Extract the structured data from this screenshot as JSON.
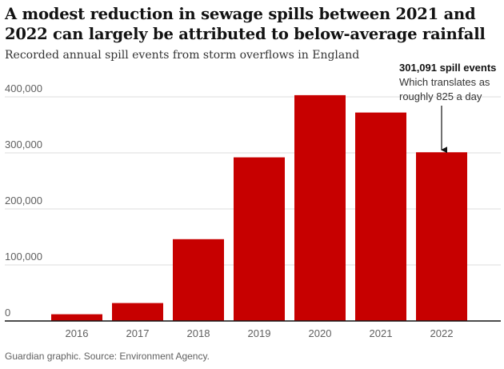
{
  "title": "A modest reduction in sewage spills between 2021 and 2022 can largely be attributed to below-average rainfall",
  "subtitle": "Recorded annual spill events from storm overflows in England",
  "source": "Guardian graphic. Source: Environment Agency.",
  "colors": {
    "bar": "#c70000",
    "grid": "#dcdcdc",
    "axis": "#121212"
  },
  "chart_data": {
    "type": "bar",
    "categories": [
      "2016",
      "2017",
      "2018",
      "2019",
      "2020",
      "2021",
      "2022"
    ],
    "values": [
      12000,
      32000,
      146000,
      292000,
      403000,
      372000,
      301091
    ],
    "ylim": [
      0,
      400000
    ],
    "yticks": [
      0,
      100000,
      200000,
      300000,
      400000
    ],
    "ytick_labels": [
      "0",
      "100,000",
      "200,000",
      "300,000",
      "400,000"
    ],
    "grid": true,
    "annotation": {
      "category": "2022",
      "line1": "301,091 spill events",
      "line2": "Which translates as",
      "line3": "roughly 825 a day"
    }
  }
}
